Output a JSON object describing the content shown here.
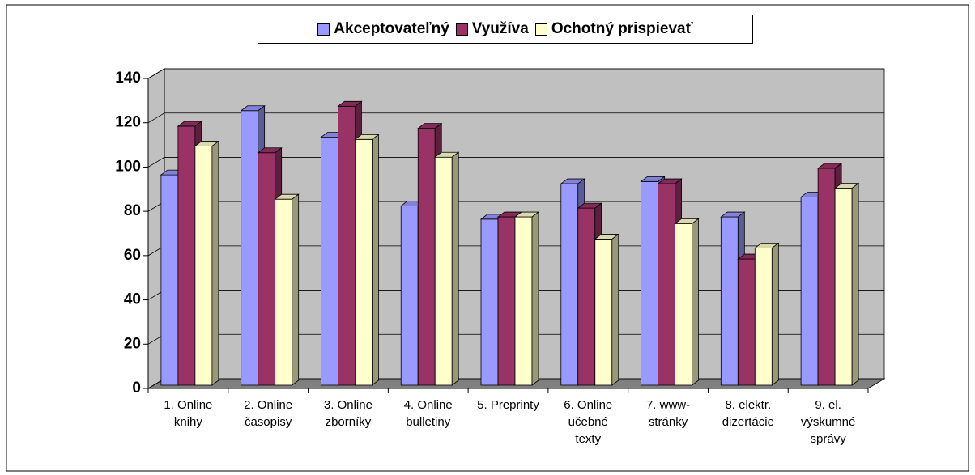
{
  "chart_data": {
    "type": "bar3d",
    "categories": [
      "1. Online knihy",
      "2. Online časopisy",
      "3. Online zborníky",
      "4. Online bulletiny",
      "5. Preprinty",
      "6. Online učebné texty",
      "7. www-stránky",
      "8. elektr. dizertácie",
      "9. el. výskumné správy"
    ],
    "series": [
      {
        "name": "Akceptovateľný",
        "color": "#9999ff",
        "values": [
          95,
          124,
          112,
          81,
          75,
          91,
          92,
          76,
          85
        ]
      },
      {
        "name": "Využíva",
        "color": "#993366",
        "values": [
          117,
          105,
          126,
          116,
          76,
          80,
          91,
          57,
          98
        ]
      },
      {
        "name": "Ochotný prispievať",
        "color": "#ffffcc",
        "values": [
          108,
          84,
          111,
          103,
          76,
          66,
          73,
          62,
          89
        ]
      }
    ],
    "ylim": [
      0,
      140
    ],
    "yticks": [
      0,
      20,
      40,
      60,
      80,
      100,
      120,
      140
    ],
    "grid": true,
    "legend": "top"
  }
}
